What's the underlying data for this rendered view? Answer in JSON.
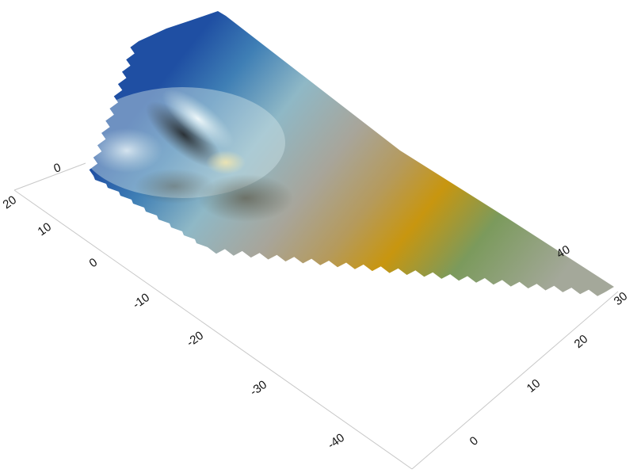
{
  "chart_data": {
    "type": "surface3d",
    "title": "",
    "xlabel": "",
    "ylabel": "",
    "zlabel": "",
    "grid": false,
    "legend": "none",
    "x_axis": {
      "ticks": [
        "-40",
        "-30",
        "-20",
        "-10",
        "0",
        "10",
        "20"
      ]
    },
    "y_axis": {
      "ticks": [
        "0",
        "10",
        "20",
        "30"
      ]
    },
    "z_axis": {
      "ticks": [
        "0",
        "40"
      ]
    },
    "surface": {
      "description_colors": [
        "#1f4fa3",
        "#5a8fb4",
        "#a9c6cf",
        "#8a8a84",
        "#b8912a",
        "#c89614",
        "#6f9a5c",
        "#9aa094"
      ],
      "features": [
        {
          "name": "ridge",
          "highlight": "#e9f4f6",
          "shadow": "#2a2a2a"
        }
      ]
    }
  }
}
